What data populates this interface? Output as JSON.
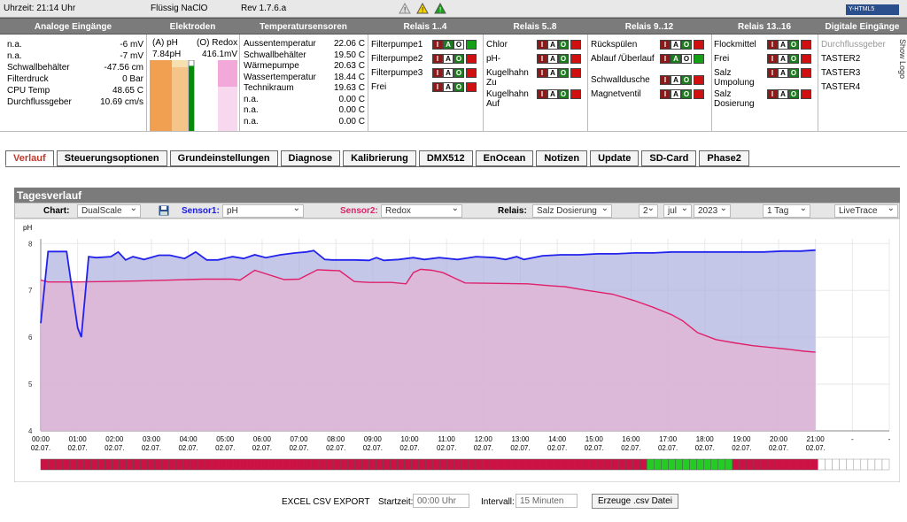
{
  "topbar": {
    "time": "Uhrzeit: 21:14 Uhr",
    "product": "Flüssig NaClO",
    "rev": "Rev 1.7.6.a",
    "logo": "Y-HTML5"
  },
  "header": [
    "Analoge Eingänge",
    "Elektroden",
    "Temperatursensoren",
    "Relais 1..4",
    "Relais 5..8",
    "Relais 9..12",
    "Relais 13..16",
    "Digitale Eingänge"
  ],
  "analog": [
    {
      "label": "n.a.",
      "value": "-6 mV"
    },
    {
      "label": "n.a.",
      "value": "-7 mV"
    },
    {
      "label": "Schwallbehälter",
      "value": "-47.56 cm"
    },
    {
      "label": "Filterdruck",
      "value": "0 Bar"
    },
    {
      "label": "CPU Temp",
      "value": "48.65 C"
    },
    {
      "label": "Durchflussgeber",
      "value": "10.69 cm/s"
    }
  ],
  "electrodes": {
    "ph_label": "(A) pH",
    "ph_value": "7.84pH",
    "redox_label": "(O) Redox",
    "redox_value": "416.1mV",
    "ph_level": 0.92
  },
  "temps": [
    {
      "label": "Aussentemperatur",
      "value": "22.06 C"
    },
    {
      "label": "Schwallbehälter",
      "value": "19.50 C"
    },
    {
      "label": "Wärmepumpe",
      "value": "20.63 C"
    },
    {
      "label": "Wassertemperatur",
      "value": "18.44 C"
    },
    {
      "label": "Technikraum",
      "value": "19.63 C"
    },
    {
      "label": "n.a.",
      "value": "0.00 C"
    },
    {
      "label": "n.a.",
      "value": "0.00 C"
    },
    {
      "label": "n.a.",
      "value": "0.00 C"
    }
  ],
  "relais1": [
    {
      "label": "Filterpumpe1",
      "state": "on"
    },
    {
      "label": "Filterpumpe2",
      "state": "off"
    },
    {
      "label": "Filterpumpe3",
      "state": "off"
    },
    {
      "label": "Frei",
      "state": "off"
    }
  ],
  "relais2": [
    {
      "label": "Chlor",
      "state": "off"
    },
    {
      "label": "pH-",
      "state": "off"
    },
    {
      "label": "Kugelhahn Zu",
      "state": "off"
    },
    {
      "label": "Kugelhahn Auf",
      "state": "off"
    }
  ],
  "relais3": [
    {
      "label": "Rückspülen",
      "state": "off"
    },
    {
      "label": "Ablauf /Überlauf",
      "state": "on"
    },
    {
      "label": "Schwalldusche",
      "state": "off"
    },
    {
      "label": "Magnetventil",
      "state": "off"
    }
  ],
  "relais4": [
    {
      "label": "Flockmittel",
      "state": "off"
    },
    {
      "label": "Frei",
      "state": "off"
    },
    {
      "label": "Salz Umpolung",
      "state": "off"
    },
    {
      "label": "Salz Dosierung",
      "state": "off"
    }
  ],
  "iao": [
    "I",
    "A",
    "O"
  ],
  "digital": [
    "Durchflussgeber",
    "TASTER2",
    "TASTER3",
    "TASTER4"
  ],
  "side_button": "Show Logo",
  "tabs": [
    "Verlauf",
    "Steuerungsoptionen",
    "Grundeinstellungen",
    "Diagnose",
    "Kalibrierung",
    "DMX512",
    "EnOcean",
    "Notizen",
    "Update",
    "SD-Card",
    "Phase2"
  ],
  "tagesverlauf": "Tagesverlauf",
  "controls": {
    "chart_label": "Chart:",
    "chart_value": "DualScale",
    "sensor1_label": "Sensor1:",
    "sensor1_value": "pH",
    "sensor2_label": "Sensor2:",
    "sensor2_value": "Redox",
    "relais_label": "Relais:",
    "relais_value": "Salz Dosierung",
    "day": "2",
    "month": "jul",
    "year": "2023",
    "range": "1 Tag",
    "mode": "LiveTrace"
  },
  "csv": {
    "title": "EXCEL CSV EXPORT",
    "start_label": "Startzeit:",
    "start_value": "00:00 Uhr",
    "interval_label": "Intervall:",
    "interval_value": "15 Minuten",
    "button": "Erzeuge .csv Datei"
  },
  "colors": {
    "ph": "#2222ee",
    "redox": "#e0206a",
    "ph_fill": "#b0b4e0",
    "redox_fill": "#e4b4d4",
    "relay_on": "#22cc22",
    "relay_off": "#cc1144"
  },
  "chart_data": {
    "type": "line",
    "ylabel": "pH",
    "yticks": [
      "4",
      "5",
      "6",
      "7",
      "8"
    ],
    "ylim": [
      4,
      8.1
    ],
    "xlabels": [
      "00:00",
      "01:00",
      "02:00",
      "03:00",
      "04:00",
      "05:00",
      "06:00",
      "07:00",
      "08:00",
      "09:00",
      "10:00",
      "11:00",
      "12:00",
      "13:00",
      "14:00",
      "15:00",
      "16:00",
      "17:00",
      "18:00",
      "19:00",
      "20:00",
      "21:00",
      "-",
      "-"
    ],
    "xdate": "02.07.",
    "series": [
      {
        "name": "pH",
        "x": [
          0,
          0.2,
          0.7,
          1.0,
          1.1,
          1.3,
          1.5,
          1.9,
          2.1,
          2.3,
          2.5,
          2.8,
          3.2,
          3.5,
          3.9,
          4.2,
          4.5,
          4.8,
          5.2,
          5.5,
          5.8,
          6.1,
          6.5,
          6.9,
          7.2,
          7.4,
          7.7,
          7.9,
          8.2,
          8.5,
          8.9,
          9.1,
          9.3,
          9.7,
          10.1,
          10.4,
          10.8,
          11.3,
          11.8,
          12.3,
          12.6,
          12.9,
          13.1,
          13.6,
          14.1,
          14.6,
          15.1,
          15.6,
          16.1,
          16.6,
          17.1,
          17.6,
          18.1,
          18.6,
          19.1,
          19.6,
          20.1,
          20.6,
          21.0
        ],
        "y": [
          6.3,
          7.83,
          7.83,
          6.2,
          6.0,
          7.72,
          7.7,
          7.72,
          7.82,
          7.65,
          7.72,
          7.66,
          7.75,
          7.75,
          7.68,
          7.82,
          7.65,
          7.65,
          7.72,
          7.68,
          7.76,
          7.7,
          7.76,
          7.8,
          7.82,
          7.85,
          7.66,
          7.65,
          7.65,
          7.65,
          7.64,
          7.7,
          7.64,
          7.66,
          7.7,
          7.66,
          7.7,
          7.66,
          7.72,
          7.7,
          7.66,
          7.72,
          7.66,
          7.74,
          7.76,
          7.76,
          7.78,
          7.78,
          7.8,
          7.8,
          7.82,
          7.82,
          7.82,
          7.82,
          7.82,
          7.82,
          7.84,
          7.84,
          7.86
        ]
      },
      {
        "name": "Redox",
        "x": [
          0,
          0.2,
          0.9,
          1.8,
          2.6,
          3.5,
          4.4,
          4.8,
          5.0,
          5.2,
          5.4,
          5.8,
          6.6,
          7.0,
          7.5,
          7.8,
          8.1,
          8.5,
          8.9,
          9.2,
          9.5,
          9.9,
          10.1,
          10.3,
          10.6,
          10.9,
          11.5,
          12.4,
          13.2,
          13.8,
          14.2,
          14.8,
          15.5,
          16.1,
          16.6,
          17.1,
          17.4,
          17.8,
          18.3,
          18.8,
          19.3,
          19.8,
          20.3,
          20.7,
          21.0
        ],
        "y": [
          7.22,
          7.18,
          7.18,
          7.19,
          7.2,
          7.22,
          7.24,
          7.24,
          7.24,
          7.24,
          7.22,
          7.43,
          7.23,
          7.24,
          7.44,
          7.43,
          7.42,
          7.19,
          7.17,
          7.17,
          7.17,
          7.14,
          7.38,
          7.45,
          7.43,
          7.38,
          7.16,
          7.15,
          7.14,
          7.1,
          7.08,
          7.0,
          6.92,
          6.78,
          6.64,
          6.48,
          6.35,
          6.1,
          5.95,
          5.88,
          5.82,
          5.78,
          5.74,
          5.7,
          5.68
        ]
      }
    ]
  },
  "relay_timeline": {
    "slots": [
      "off",
      "off",
      "off",
      "off",
      "off",
      "off",
      "off",
      "off",
      "off",
      "off",
      "off",
      "off",
      "off",
      "off",
      "off",
      "off",
      "off",
      "off",
      "off",
      "off",
      "off",
      "off",
      "off",
      "off",
      "off",
      "off",
      "off",
      "off",
      "off",
      "off",
      "off",
      "off",
      "off",
      "off",
      "off",
      "off",
      "off",
      "off",
      "off",
      "off",
      "off",
      "off",
      "off",
      "off",
      "off",
      "off",
      "off",
      "off",
      "off",
      "off",
      "off",
      "off",
      "off",
      "off",
      "off",
      "off",
      "off",
      "off",
      "off",
      "off",
      "off",
      "off",
      "off",
      "off",
      "off",
      "off",
      "off",
      "off",
      "off",
      "off",
      "off",
      "off",
      "off",
      "off",
      "off",
      "off",
      "off",
      "off",
      "off",
      "off",
      "off",
      "off",
      "off",
      "off",
      "off",
      "on",
      "on",
      "on",
      "on",
      "on",
      "on",
      "on",
      "on",
      "on",
      "on",
      "on",
      "on",
      "off",
      "off",
      "off",
      "off",
      "off",
      "off",
      "off",
      "off",
      "off",
      "off",
      "off",
      "off",
      "na",
      "na",
      "na",
      "na",
      "na",
      "na",
      "na",
      "na",
      "na",
      "na"
    ]
  }
}
